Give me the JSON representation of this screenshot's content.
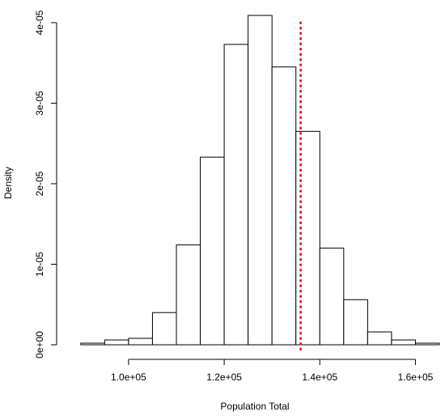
{
  "chart_data": {
    "type": "bar",
    "title": "",
    "xlabel": "Population Total",
    "ylabel": "Density",
    "xlim": [
      88000,
      165000
    ],
    "ylim": [
      0,
      4e-05
    ],
    "bin_edges": [
      90000,
      95000,
      100000,
      105000,
      110000,
      115000,
      120000,
      125000,
      130000,
      135000,
      140000,
      145000,
      150000,
      155000,
      160000,
      165000
    ],
    "values": [
      2e-07,
      6e-07,
      8e-07,
      4e-06,
      1.24e-05,
      2.33e-05,
      3.73e-05,
      4.09e-05,
      3.45e-05,
      2.65e-05,
      1.2e-05,
      5.6e-06,
      1.6e-06,
      6e-07,
      2e-07
    ],
    "x_ticks": [
      {
        "value": 100000,
        "label": "1.0e+05"
      },
      {
        "value": 120000,
        "label": "1.2e+05"
      },
      {
        "value": 140000,
        "label": "1.4e+05"
      },
      {
        "value": 160000,
        "label": "1.6e+05"
      }
    ],
    "y_ticks": [
      {
        "value": 0,
        "label": "0e+00"
      },
      {
        "value": 1e-05,
        "label": "1e-05"
      },
      {
        "value": 2e-05,
        "label": "2e-05"
      },
      {
        "value": 3e-05,
        "label": "3e-05"
      },
      {
        "value": 4e-05,
        "label": "4e-05"
      }
    ],
    "reference_line": {
      "x": 136000,
      "color": "#e8191a",
      "style": "dotted"
    },
    "grid": false,
    "legend": "none"
  }
}
